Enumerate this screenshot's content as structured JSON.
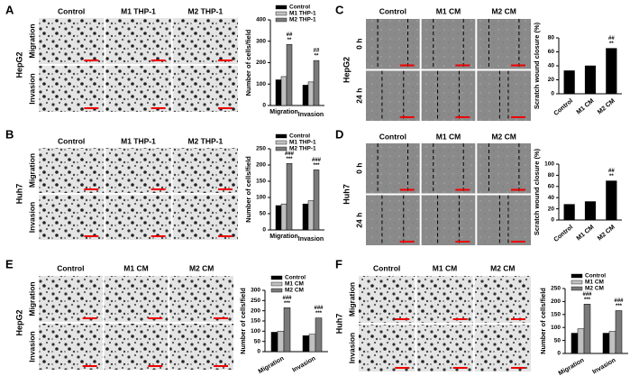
{
  "panels": [
    {
      "letter": "A",
      "cell_line": "HepG2",
      "columns": [
        "Control",
        "M1 THP-1",
        "M2 THP-1"
      ],
      "rows": [
        "Migration",
        "Invasion"
      ]
    },
    {
      "letter": "B",
      "cell_line": "Huh7",
      "columns": [
        "Control",
        "M1 THP-1",
        "M2 THP-1"
      ],
      "rows": [
        "Migration",
        "Invasion"
      ]
    },
    {
      "letter": "C",
      "cell_line": "HepG2",
      "columns": [
        "Control",
        "M1 CM",
        "M2 CM"
      ],
      "rows": [
        "0 h",
        "24 h"
      ]
    },
    {
      "letter": "D",
      "cell_line": "Huh7",
      "columns": [
        "Control",
        "M1 CM",
        "M2 CM"
      ],
      "rows": [
        "0 h",
        "24 h"
      ]
    },
    {
      "letter": "E",
      "cell_line": "HepG2",
      "columns": [
        "Control",
        "M1 CM",
        "M2 CM"
      ],
      "rows": [
        "Migration",
        "Invasion"
      ]
    },
    {
      "letter": "F",
      "cell_line": "Huh7",
      "columns": [
        "Control",
        "M1 CM",
        "M2 CM"
      ],
      "rows": [
        "Migration",
        "Invasion"
      ]
    }
  ],
  "chart_data": [
    {
      "type": "bar",
      "ylabel": "Number of cells/field",
      "categories": [
        "Migration",
        "Invasion"
      ],
      "ylim": [
        0,
        400
      ],
      "yticks": [
        0,
        100,
        200,
        300,
        400
      ],
      "series": [
        {
          "name": "Control",
          "color": "#000000",
          "values": [
            120,
            95
          ]
        },
        {
          "name": "M1 THP-1",
          "color": "#c0c0c0",
          "values": [
            135,
            110
          ]
        },
        {
          "name": "M2 THP-1",
          "color": "#7a7a7a",
          "values": [
            285,
            210
          ],
          "annotations": [
            [
              "##",
              "**"
            ],
            [
              "##",
              "**"
            ]
          ]
        }
      ]
    },
    {
      "type": "bar",
      "ylabel": "Number of cells/field",
      "categories": [
        "Migration",
        "Invasion"
      ],
      "ylim": [
        0,
        250
      ],
      "yticks": [
        0,
        50,
        100,
        150,
        200,
        250
      ],
      "series": [
        {
          "name": "Control",
          "color": "#000000",
          "values": [
            75,
            80
          ]
        },
        {
          "name": "M1 THP-1",
          "color": "#c0c0c0",
          "values": [
            80,
            90
          ]
        },
        {
          "name": "M2 THP-1",
          "color": "#7a7a7a",
          "values": [
            205,
            185
          ],
          "annotations": [
            [
              "###",
              "***"
            ],
            [
              "###",
              "***"
            ]
          ]
        }
      ]
    },
    {
      "type": "bar",
      "ylabel": "Scratch wound closure (%)",
      "categories": [
        "Control",
        "M1 CM",
        "M2 CM"
      ],
      "ylim": [
        0,
        80
      ],
      "yticks": [
        0,
        20,
        40,
        60,
        80
      ],
      "series": [
        {
          "color": "#000000",
          "values": [
            33,
            40,
            65
          ],
          "annotations": [
            [],
            [],
            [
              "##",
              "**"
            ]
          ]
        }
      ]
    },
    {
      "type": "bar",
      "ylabel": "Scratch wound closure (%)",
      "categories": [
        "Control",
        "M1 CM",
        "M2 CM"
      ],
      "ylim": [
        0,
        100
      ],
      "yticks": [
        0,
        20,
        40,
        60,
        80,
        100
      ],
      "series": [
        {
          "color": "#000000",
          "values": [
            28,
            33,
            70
          ],
          "annotations": [
            [],
            [],
            [
              "##",
              "**"
            ]
          ]
        }
      ]
    },
    {
      "type": "bar",
      "ylabel": "Number of cells/field",
      "categories": [
        "Migration",
        "Invasion"
      ],
      "ylim": [
        0,
        300
      ],
      "yticks": [
        0,
        50,
        100,
        150,
        200,
        250,
        300
      ],
      "series": [
        {
          "name": "Control",
          "color": "#000000",
          "values": [
            95,
            78
          ]
        },
        {
          "name": "M1 CM",
          "color": "#c0c0c0",
          "values": [
            100,
            85
          ]
        },
        {
          "name": "M2 CM",
          "color": "#7a7a7a",
          "values": [
            215,
            165
          ],
          "annotations": [
            [
              "###",
              "***"
            ],
            [
              "###",
              "***"
            ]
          ]
        }
      ]
    },
    {
      "type": "bar",
      "ylabel": "Number of cells/field",
      "categories": [
        "Migration",
        "Invasion"
      ],
      "ylim": [
        0,
        250
      ],
      "yticks": [
        0,
        50,
        100,
        150,
        200,
        250
      ],
      "series": [
        {
          "name": "Control",
          "color": "#000000",
          "values": [
            78,
            78
          ]
        },
        {
          "name": "M1 CM",
          "color": "#c0c0c0",
          "values": [
            95,
            85
          ]
        },
        {
          "name": "M2 CM",
          "color": "#7a7a7a",
          "values": [
            190,
            165
          ],
          "annotations": [
            [
              "###",
              "***"
            ],
            [
              "###",
              "***"
            ]
          ]
        }
      ]
    }
  ]
}
